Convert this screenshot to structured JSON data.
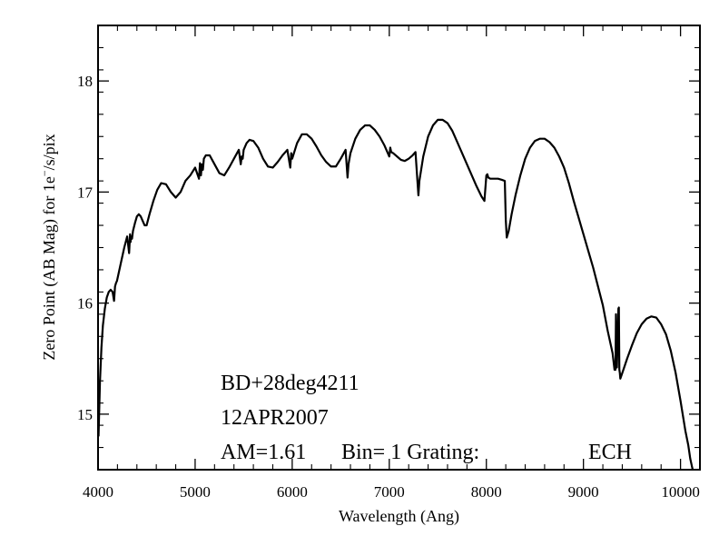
{
  "chart_data": {
    "type": "line",
    "title": "",
    "xlabel": "Wavelength (Ang)",
    "ylabel_main": "Zero Point (AB Mag) for 1e",
    "ylabel_sup": "−",
    "ylabel_tail": "/s/pix",
    "xlim": [
      4000,
      10200
    ],
    "ylim": [
      14.5,
      18.5
    ],
    "x_ticks": [
      4000,
      5000,
      6000,
      7000,
      8000,
      9000,
      10000
    ],
    "y_ticks": [
      15,
      16,
      17,
      18
    ],
    "grid": false,
    "legend": "none",
    "annotations": [
      "BD+28deg4211",
      "12APR2007"
    ],
    "annotation_am": "AM=1.61",
    "annotation_bin": "Bin= 1 Grating:",
    "annotation_grating": "ECH",
    "series": [
      {
        "color": "#000000",
        "x": [
          4005,
          4020,
          4035,
          4050,
          4070,
          4090,
          4110,
          4130,
          4150,
          4165,
          4175,
          4185,
          4195,
          4200,
          4215,
          4240,
          4270,
          4300,
          4320,
          4330,
          4335,
          4340,
          4350,
          4360,
          4380,
          4400,
          4420,
          4440,
          4460,
          4480,
          4500,
          4530,
          4570,
          4610,
          4650,
          4700,
          4750,
          4800,
          4850,
          4900,
          4950,
          5000,
          5040,
          5050,
          5060,
          5070,
          5080,
          5090,
          5110,
          5150,
          5200,
          5250,
          5300,
          5350,
          5400,
          5450,
          5470,
          5480,
          5490,
          5500,
          5530,
          5560,
          5600,
          5650,
          5700,
          5750,
          5800,
          5850,
          5900,
          5950,
          5980,
          5990,
          6000,
          6050,
          6100,
          6150,
          6200,
          6250,
          6300,
          6350,
          6400,
          6450,
          6500,
          6550,
          6570,
          6580,
          6600,
          6650,
          6700,
          6750,
          6800,
          6850,
          6900,
          6950,
          7000,
          7010,
          7020,
          7040,
          7080,
          7120,
          7160,
          7200,
          7240,
          7270,
          7290,
          7300,
          7310,
          7350,
          7400,
          7450,
          7500,
          7550,
          7600,
          7650,
          7700,
          7750,
          7800,
          7850,
          7900,
          7950,
          7980,
          8000,
          8010,
          8020,
          8040,
          8080,
          8120,
          8160,
          8190,
          8200,
          8210,
          8230,
          8260,
          8300,
          8350,
          8400,
          8450,
          8500,
          8550,
          8600,
          8650,
          8700,
          8750,
          8800,
          8850,
          8900,
          8950,
          9000,
          9050,
          9100,
          9150,
          9200,
          9250,
          9300,
          9320,
          9330,
          9335,
          9340,
          9345,
          9360,
          9365,
          9370,
          9375,
          9380,
          9400,
          9450,
          9500,
          9550,
          9600,
          9650,
          9700,
          9750,
          9800,
          9850,
          9900,
          9950,
          10000,
          10050,
          10080,
          10100,
          10120,
          10150
        ],
        "y": [
          14.8,
          15.3,
          15.6,
          15.8,
          15.95,
          16.05,
          16.1,
          16.12,
          16.1,
          16.02,
          16.15,
          16.18,
          16.2,
          16.22,
          16.28,
          16.38,
          16.5,
          16.6,
          16.45,
          16.62,
          16.55,
          16.6,
          16.58,
          16.65,
          16.72,
          16.78,
          16.8,
          16.78,
          16.74,
          16.7,
          16.7,
          16.8,
          16.92,
          17.02,
          17.08,
          17.07,
          17.0,
          16.95,
          17.0,
          17.1,
          17.15,
          17.22,
          17.12,
          17.26,
          17.15,
          17.25,
          17.2,
          17.3,
          17.33,
          17.33,
          17.25,
          17.17,
          17.15,
          17.22,
          17.3,
          17.38,
          17.25,
          17.32,
          17.3,
          17.38,
          17.44,
          17.47,
          17.46,
          17.4,
          17.3,
          17.23,
          17.22,
          17.27,
          17.33,
          17.38,
          17.22,
          17.35,
          17.3,
          17.44,
          17.52,
          17.52,
          17.48,
          17.41,
          17.33,
          17.27,
          17.23,
          17.23,
          17.3,
          17.38,
          17.13,
          17.25,
          17.35,
          17.48,
          17.56,
          17.6,
          17.6,
          17.56,
          17.5,
          17.42,
          17.32,
          17.4,
          17.36,
          17.35,
          17.32,
          17.29,
          17.28,
          17.3,
          17.33,
          17.36,
          17.1,
          16.97,
          17.1,
          17.32,
          17.5,
          17.6,
          17.65,
          17.65,
          17.62,
          17.55,
          17.45,
          17.35,
          17.25,
          17.15,
          17.05,
          16.96,
          16.92,
          17.15,
          17.16,
          17.13,
          17.12,
          17.12,
          17.12,
          17.11,
          17.1,
          16.75,
          16.59,
          16.65,
          16.8,
          16.97,
          17.15,
          17.3,
          17.4,
          17.46,
          17.48,
          17.48,
          17.45,
          17.4,
          17.32,
          17.22,
          17.08,
          16.92,
          16.77,
          16.62,
          16.47,
          16.32,
          16.15,
          15.98,
          15.75,
          15.55,
          15.4,
          15.4,
          15.9,
          15.45,
          15.42,
          15.95,
          15.96,
          15.4,
          15.37,
          15.32,
          15.37,
          15.5,
          15.62,
          15.73,
          15.81,
          15.86,
          15.88,
          15.87,
          15.81,
          15.72,
          15.57,
          15.37,
          15.12,
          14.85,
          14.72,
          14.6,
          14.52,
          14.42
        ]
      }
    ]
  }
}
